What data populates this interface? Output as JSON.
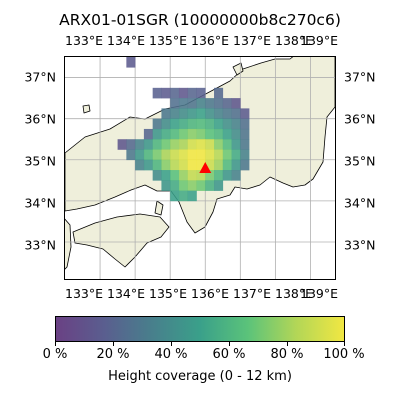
{
  "title": "ARX01-01SGR (10000000b8c270c6)",
  "lon_labels": [
    "133°E",
    "134°E",
    "135°E",
    "136°E",
    "137°E",
    "138°E",
    "139°E"
  ],
  "lat_labels": [
    "37°N",
    "36°N",
    "35°N",
    "34°N",
    "33°N"
  ],
  "colorbar": {
    "label": "Height coverage (0 - 12 km)",
    "ticks": [
      "0 %",
      "20 %",
      "40 %",
      "60 %",
      "80 %",
      "100 %"
    ],
    "colors": [
      "#6a4184",
      "#5a5e8f",
      "#487f8c",
      "#3aa08a",
      "#5bc37a",
      "#b2d657",
      "#f1e742"
    ]
  },
  "colors": {
    "land": "#efefdb",
    "sea": "#ffffff",
    "marker": "#ff0000",
    "grid": "#b0b0b0"
  },
  "map_data": {
    "lon_range": [
      132.0,
      139.7
    ],
    "lat_range": [
      32.1,
      37.5
    ],
    "grid_lon": [
      133,
      134,
      135,
      136,
      137,
      138,
      139
    ],
    "grid_lat": [
      33,
      34,
      35,
      36,
      37
    ],
    "marker": {
      "lon": 136.0,
      "lat": 34.8,
      "symbol": "triangle"
    },
    "cell_size": 0.25,
    "cells": [
      [
        133.75,
        37.25,
        0.15
      ],
      [
        134.5,
        36.5,
        0.18
      ],
      [
        134.75,
        36.5,
        0.15
      ],
      [
        135.0,
        36.5,
        0.2
      ],
      [
        135.25,
        36.5,
        0.12
      ],
      [
        135.5,
        36.5,
        0.2
      ],
      [
        135.75,
        36.5,
        0.18
      ],
      [
        136.25,
        36.5,
        0.22
      ],
      [
        135.0,
        36.25,
        0.25
      ],
      [
        135.25,
        36.25,
        0.3
      ],
      [
        135.5,
        36.25,
        0.28
      ],
      [
        135.75,
        36.25,
        0.35
      ],
      [
        136.0,
        36.25,
        0.3
      ],
      [
        136.25,
        36.25,
        0.25
      ],
      [
        136.5,
        36.25,
        0.2
      ],
      [
        136.75,
        36.25,
        0.12
      ],
      [
        134.75,
        36.0,
        0.3
      ],
      [
        135.0,
        36.0,
        0.35
      ],
      [
        135.25,
        36.0,
        0.4
      ],
      [
        135.5,
        36.0,
        0.45
      ],
      [
        135.75,
        36.0,
        0.5
      ],
      [
        136.0,
        36.0,
        0.42
      ],
      [
        136.25,
        36.0,
        0.35
      ],
      [
        136.5,
        36.0,
        0.3
      ],
      [
        136.75,
        36.0,
        0.25
      ],
      [
        137.0,
        36.0,
        0.15
      ],
      [
        134.5,
        35.75,
        0.3
      ],
      [
        134.75,
        35.75,
        0.4
      ],
      [
        135.0,
        35.75,
        0.5
      ],
      [
        135.25,
        35.75,
        0.55
      ],
      [
        135.5,
        35.75,
        0.6
      ],
      [
        135.75,
        35.75,
        0.62
      ],
      [
        136.0,
        35.75,
        0.58
      ],
      [
        136.25,
        35.75,
        0.5
      ],
      [
        136.5,
        35.75,
        0.42
      ],
      [
        136.75,
        35.75,
        0.35
      ],
      [
        137.0,
        35.75,
        0.25
      ],
      [
        134.25,
        35.5,
        0.2
      ],
      [
        134.5,
        35.5,
        0.45
      ],
      [
        134.75,
        35.5,
        0.55
      ],
      [
        135.0,
        35.5,
        0.62
      ],
      [
        135.25,
        35.5,
        0.7
      ],
      [
        135.5,
        35.5,
        0.75
      ],
      [
        135.75,
        35.5,
        0.72
      ],
      [
        136.0,
        35.5,
        0.65
      ],
      [
        136.25,
        35.5,
        0.6
      ],
      [
        136.5,
        35.5,
        0.5
      ],
      [
        136.75,
        35.5,
        0.4
      ],
      [
        137.0,
        35.5,
        0.28
      ],
      [
        133.5,
        35.25,
        0.12
      ],
      [
        133.75,
        35.25,
        0.22
      ],
      [
        134.0,
        35.25,
        0.35
      ],
      [
        134.25,
        35.25,
        0.45
      ],
      [
        134.5,
        35.25,
        0.6
      ],
      [
        134.75,
        35.25,
        0.7
      ],
      [
        135.0,
        35.25,
        0.78
      ],
      [
        135.25,
        35.25,
        0.82
      ],
      [
        135.5,
        35.25,
        0.92
      ],
      [
        135.75,
        35.25,
        0.95
      ],
      [
        136.0,
        35.25,
        0.9
      ],
      [
        136.25,
        35.25,
        0.75
      ],
      [
        136.5,
        35.25,
        0.62
      ],
      [
        136.75,
        35.25,
        0.45
      ],
      [
        137.0,
        35.25,
        0.3
      ],
      [
        133.75,
        35.0,
        0.3
      ],
      [
        134.0,
        35.0,
        0.45
      ],
      [
        134.25,
        35.0,
        0.6
      ],
      [
        134.5,
        35.0,
        0.72
      ],
      [
        134.75,
        35.0,
        0.82
      ],
      [
        135.0,
        35.0,
        0.9
      ],
      [
        135.25,
        35.0,
        0.95
      ],
      [
        135.5,
        35.0,
        1.0
      ],
      [
        135.75,
        35.0,
        1.0
      ],
      [
        136.0,
        35.0,
        0.95
      ],
      [
        136.25,
        35.0,
        0.85
      ],
      [
        136.5,
        35.0,
        0.7
      ],
      [
        136.75,
        35.0,
        0.55
      ],
      [
        137.0,
        35.0,
        0.35
      ],
      [
        134.0,
        34.75,
        0.35
      ],
      [
        134.25,
        34.75,
        0.45
      ],
      [
        134.5,
        34.75,
        0.6
      ],
      [
        134.75,
        34.75,
        0.75
      ],
      [
        135.0,
        34.75,
        0.85
      ],
      [
        135.25,
        34.75,
        0.92
      ],
      [
        135.5,
        34.75,
        1.0
      ],
      [
        135.75,
        34.75,
        1.0
      ],
      [
        136.0,
        34.75,
        0.9
      ],
      [
        136.25,
        34.75,
        0.8
      ],
      [
        136.5,
        34.75,
        0.62
      ],
      [
        136.75,
        34.75,
        0.45
      ],
      [
        137.0,
        34.75,
        0.3
      ],
      [
        134.5,
        34.5,
        0.4
      ],
      [
        134.75,
        34.5,
        0.5
      ],
      [
        135.0,
        34.5,
        0.65
      ],
      [
        135.25,
        34.5,
        0.78
      ],
      [
        135.5,
        34.5,
        0.88
      ],
      [
        135.75,
        34.5,
        0.85
      ],
      [
        136.0,
        34.5,
        0.72
      ],
      [
        136.25,
        34.5,
        0.6
      ],
      [
        136.5,
        34.5,
        0.45
      ],
      [
        136.75,
        34.5,
        0.35
      ],
      [
        134.75,
        34.25,
        0.45
      ],
      [
        135.0,
        34.25,
        0.55
      ],
      [
        135.25,
        34.25,
        0.7
      ],
      [
        135.5,
        34.25,
        0.75
      ],
      [
        135.75,
        34.25,
        0.7
      ],
      [
        136.0,
        34.25,
        0.58
      ],
      [
        136.25,
        34.25,
        0.45
      ],
      [
        135.0,
        34.0,
        0.5
      ],
      [
        135.25,
        34.0,
        0.55
      ],
      [
        135.5,
        34.0,
        0.5
      ]
    ]
  }
}
